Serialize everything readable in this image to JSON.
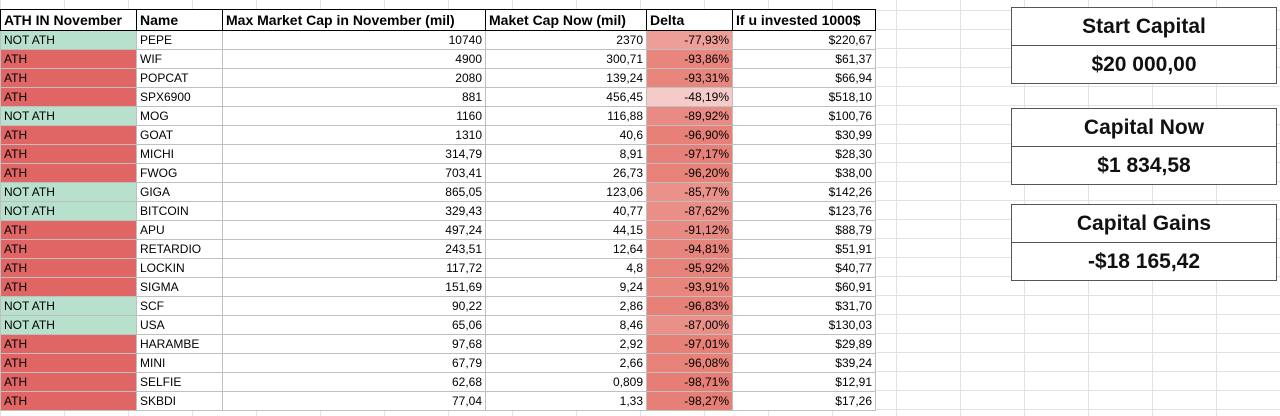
{
  "headers": {
    "status": "ATH IN November",
    "name": "Name",
    "max_cap": "Max Market Cap in November (mil)",
    "cap_now": "Maket Cap Now (mil)",
    "delta": "Delta",
    "invested": "If u invested 1000$"
  },
  "colors": {
    "ath": "#e06666",
    "not_ath": "#b7e1cd"
  },
  "rows": [
    {
      "status": "NOT ATH",
      "name": "PEPE",
      "max_cap": "10740",
      "cap_now": "2370",
      "delta": "-77,93%",
      "invested": "$220,67",
      "delta_pct": -77.93
    },
    {
      "status": "ATH",
      "name": "WIF",
      "max_cap": "4900",
      "cap_now": "300,71",
      "delta": "-93,86%",
      "invested": "$61,37",
      "delta_pct": -93.86
    },
    {
      "status": "ATH",
      "name": "POPCAT",
      "max_cap": "2080",
      "cap_now": "139,24",
      "delta": "-93,31%",
      "invested": "$66,94",
      "delta_pct": -93.31
    },
    {
      "status": "ATH",
      "name": "SPX6900",
      "max_cap": "881",
      "cap_now": "456,45",
      "delta": "-48,19%",
      "invested": "$518,10",
      "delta_pct": -48.19
    },
    {
      "status": "NOT ATH",
      "name": "MOG",
      "max_cap": "1160",
      "cap_now": "116,88",
      "delta": "-89,92%",
      "invested": "$100,76",
      "delta_pct": -89.92
    },
    {
      "status": "ATH",
      "name": "GOAT",
      "max_cap": "1310",
      "cap_now": "40,6",
      "delta": "-96,90%",
      "invested": "$30,99",
      "delta_pct": -96.9
    },
    {
      "status": "ATH",
      "name": "MICHI",
      "max_cap": "314,79",
      "cap_now": "8,91",
      "delta": "-97,17%",
      "invested": "$28,30",
      "delta_pct": -97.17
    },
    {
      "status": "ATH",
      "name": "FWOG",
      "max_cap": "703,41",
      "cap_now": "26,73",
      "delta": "-96,20%",
      "invested": "$38,00",
      "delta_pct": -96.2
    },
    {
      "status": "NOT ATH",
      "name": "GIGA",
      "max_cap": "865,05",
      "cap_now": "123,06",
      "delta": "-85,77%",
      "invested": "$142,26",
      "delta_pct": -85.77
    },
    {
      "status": "NOT ATH",
      "name": "BITCOIN",
      "max_cap": "329,43",
      "cap_now": "40,77",
      "delta": "-87,62%",
      "invested": "$123,76",
      "delta_pct": -87.62
    },
    {
      "status": "ATH",
      "name": "APU",
      "max_cap": "497,24",
      "cap_now": "44,15",
      "delta": "-91,12%",
      "invested": "$88,79",
      "delta_pct": -91.12
    },
    {
      "status": "ATH",
      "name": "RETARDIO",
      "max_cap": "243,51",
      "cap_now": "12,64",
      "delta": "-94,81%",
      "invested": "$51,91",
      "delta_pct": -94.81
    },
    {
      "status": "ATH",
      "name": "LOCKIN",
      "max_cap": "117,72",
      "cap_now": "4,8",
      "delta": "-95,92%",
      "invested": "$40,77",
      "delta_pct": -95.92
    },
    {
      "status": "ATH",
      "name": "SIGMA",
      "max_cap": "151,69",
      "cap_now": "9,24",
      "delta": "-93,91%",
      "invested": "$60,91",
      "delta_pct": -93.91
    },
    {
      "status": "NOT ATH",
      "name": "SCF",
      "max_cap": "90,22",
      "cap_now": "2,86",
      "delta": "-96,83%",
      "invested": "$31,70",
      "delta_pct": -96.83
    },
    {
      "status": "NOT ATH",
      "name": "USA",
      "max_cap": "65,06",
      "cap_now": "8,46",
      "delta": "-87,00%",
      "invested": "$130,03",
      "delta_pct": -87.0
    },
    {
      "status": "ATH",
      "name": "HARAMBE",
      "max_cap": "97,68",
      "cap_now": "2,92",
      "delta": "-97,01%",
      "invested": "$29,89",
      "delta_pct": -97.01
    },
    {
      "status": "ATH",
      "name": "MINI",
      "max_cap": "67,79",
      "cap_now": "2,66",
      "delta": "-96,08%",
      "invested": "$39,24",
      "delta_pct": -96.08
    },
    {
      "status": "ATH",
      "name": "SELFIE",
      "max_cap": "62,68",
      "cap_now": "0,809",
      "delta": "-98,71%",
      "invested": "$12,91",
      "delta_pct": -98.71
    },
    {
      "status": "ATH",
      "name": "SKBDI",
      "max_cap": "77,04",
      "cap_now": "1,33",
      "delta": "-98,27%",
      "invested": "$17,26",
      "delta_pct": -98.27
    }
  ],
  "summary": {
    "start_capital": {
      "label": "Start Capital",
      "value": "$20 000,00"
    },
    "capital_now": {
      "label": "Capital Now",
      "value": "$1 834,58"
    },
    "capital_gains": {
      "label": "Capital Gains",
      "value": "-$18 165,42"
    }
  }
}
